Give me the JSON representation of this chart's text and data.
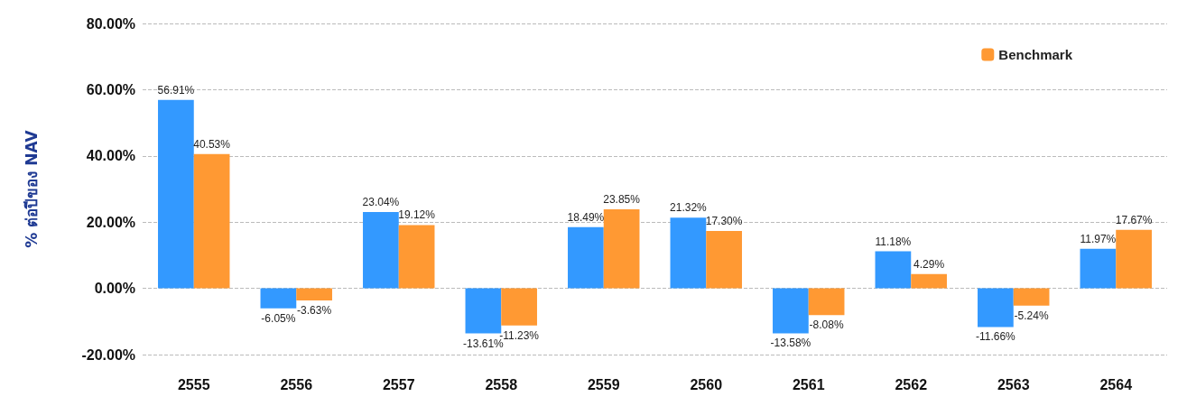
{
  "chart_data": {
    "type": "bar",
    "ylabel": "% ต่อปีของ NAV",
    "categories": [
      "2555",
      "2556",
      "2557",
      "2558",
      "2559",
      "2560",
      "2561",
      "2562",
      "2563",
      "2564"
    ],
    "series": [
      {
        "color": "#3399ff",
        "values": [
          56.91,
          -6.05,
          23.04,
          -13.61,
          18.49,
          21.32,
          -13.58,
          11.18,
          -11.66,
          11.97
        ],
        "value_labels": [
          "56.91%",
          "-6.05%",
          "23.04%",
          "-13.61%",
          "18.49%",
          "21.32%",
          "-13.58%",
          "11.18%",
          "-11.66%",
          "11.97%"
        ]
      },
      {
        "name": "Benchmark",
        "color": "#ff9933",
        "values": [
          40.53,
          -3.63,
          19.12,
          -11.23,
          23.85,
          17.3,
          -8.08,
          4.29,
          -5.24,
          17.67
        ],
        "value_labels": [
          "40.53%",
          "-3.63%",
          "19.12%",
          "-11.23%",
          "23.85%",
          "17.30%",
          "-8.08%",
          "4.29%",
          "-5.24%",
          "17.67%"
        ]
      }
    ],
    "ylim": [
      -20,
      80
    ],
    "yticks": [
      {
        "value": -20,
        "label": "-20.00%"
      },
      {
        "value": 0,
        "label": "0.00%"
      },
      {
        "value": 20,
        "label": "20.00%"
      },
      {
        "value": 40,
        "label": "40.00%"
      },
      {
        "value": 60,
        "label": "60.00%"
      },
      {
        "value": 80,
        "label": "80.00%"
      }
    ],
    "grid": "y",
    "legend": "top right"
  }
}
